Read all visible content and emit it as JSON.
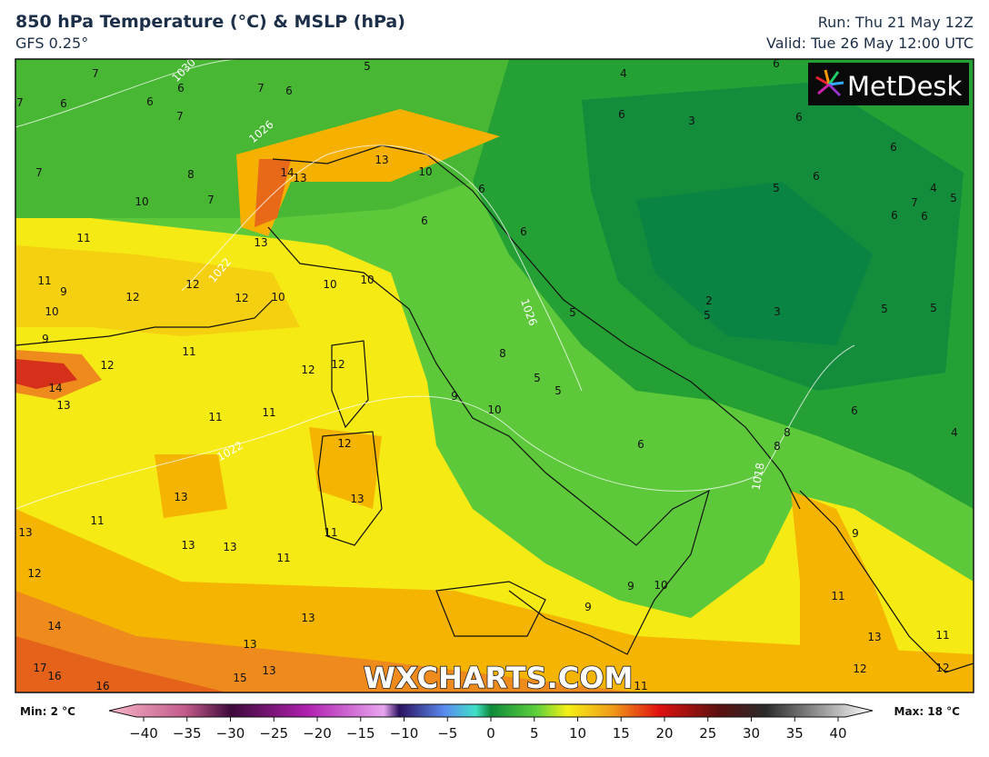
{
  "header": {
    "title": "850 hPa Temperature (°C) & MSLP (hPa)",
    "model": "GFS 0.25°",
    "run": "Run: Thu 21 May 12Z",
    "valid": "Valid: Tue 26 May 12:00 UTC"
  },
  "map": {
    "logo": "MetDesk",
    "watermark": "WXCHARTS.COM",
    "temperature_labels": [
      7,
      6,
      6,
      7,
      7,
      6,
      7,
      6,
      5,
      4,
      6,
      6,
      3,
      6,
      6,
      6,
      5,
      4,
      5,
      6,
      6,
      7,
      7,
      8,
      7,
      10,
      14,
      13,
      13,
      10,
      6,
      6,
      6,
      11,
      13,
      11,
      9,
      12,
      12,
      12,
      10,
      10,
      10,
      10,
      5,
      2,
      5,
      3,
      5,
      5,
      9,
      11,
      8,
      12,
      12,
      12,
      14,
      13,
      5,
      5,
      9,
      10,
      11,
      11,
      6,
      8,
      8,
      6,
      4,
      12,
      13,
      13,
      11,
      13,
      13,
      13,
      11,
      11,
      12,
      9,
      10,
      9,
      9,
      11,
      14,
      13,
      13,
      13,
      11,
      17,
      16,
      15,
      13,
      16,
      12,
      12,
      11
    ],
    "pressure_labels": [
      1030,
      1026,
      1022,
      1026,
      1022,
      1018
    ]
  },
  "colorbar": {
    "min_label": "Min: 2 °C",
    "max_label": "Max: 18 °C",
    "ticks": [
      {
        "value": -40,
        "label": "−40"
      },
      {
        "value": -35,
        "label": "−35"
      },
      {
        "value": -30,
        "label": "−30"
      },
      {
        "value": -25,
        "label": "−25"
      },
      {
        "value": -20,
        "label": "−20"
      },
      {
        "value": -15,
        "label": "−15"
      },
      {
        "value": -10,
        "label": "−10"
      },
      {
        "value": -5,
        "label": "−5"
      },
      0,
      5,
      10,
      15,
      20,
      25,
      30,
      35,
      40
    ]
  }
}
